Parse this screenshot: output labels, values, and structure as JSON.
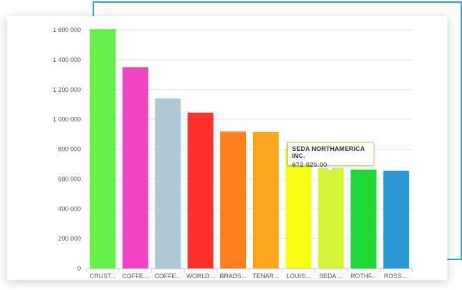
{
  "chart_data": {
    "type": "bar",
    "title": "",
    "xlabel": "",
    "ylabel": "",
    "ylim": [
      0,
      1600000
    ],
    "yticks": [
      0,
      200000,
      400000,
      600000,
      800000,
      1000000,
      1200000,
      1400000,
      1600000
    ],
    "ytick_labels": [
      "0",
      "200 000",
      "400 000",
      "600 000",
      "800 000",
      "1 000 000",
      "1 200 000",
      "1 400 000",
      "1 600 000"
    ],
    "categories": [
      "CRUST...",
      "COFFE...",
      "COFFE...",
      "WORLD...",
      "BRADS...",
      "TENAR...",
      "LOUIS...",
      "SEDA ...",
      "ROTHF...",
      "ROSS ..."
    ],
    "values": [
      1605000,
      1350000,
      1140000,
      1045000,
      918000,
      915000,
      800000,
      672929,
      663000,
      655000
    ],
    "colors": [
      "#66f04a",
      "#f044c0",
      "#adc8d6",
      "#ff2f2a",
      "#ff7c21",
      "#ffa51e",
      "#f7ff1b",
      "#d4f53a",
      "#1fd736",
      "#2a98d6"
    ],
    "grid": true,
    "legend": "none",
    "tooltip": {
      "category_index": 7,
      "title": "SEDA NORTHAMERICA INC.",
      "value": "672 929.00"
    }
  }
}
